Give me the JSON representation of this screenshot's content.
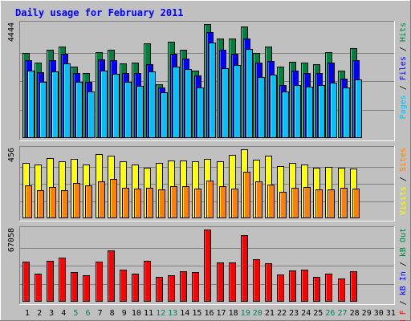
{
  "chart_data": {
    "type": "bar",
    "title": "Daily usage for February 2011",
    "days": [
      "1",
      "2",
      "3",
      "4",
      "5",
      "6",
      "7",
      "8",
      "9",
      "10",
      "11",
      "12",
      "13",
      "14",
      "15",
      "16",
      "17",
      "18",
      "19",
      "20",
      "21",
      "22",
      "23",
      "24",
      "25",
      "26",
      "27",
      "28",
      "29",
      "30",
      "31"
    ],
    "weekend_days": [
      "5",
      "6",
      "12",
      "13",
      "19",
      "20",
      "26",
      "27"
    ],
    "panels": [
      {
        "id": "hits",
        "ymax_label": "4444",
        "ymax": 4444,
        "legend": [
          {
            "text": "Pages",
            "color": "#00C0FF"
          },
          {
            "text": " / ",
            "color": "#000000"
          },
          {
            "text": "Files",
            "color": "#0000FF"
          },
          {
            "text": " / ",
            "color": "#000000"
          },
          {
            "text": "Hits",
            "color": "#008040"
          }
        ],
        "series": [
          {
            "name": "Hits",
            "color": "#008040",
            "values": [
              3330,
              2950,
              3440,
              3580,
              2770,
              2530,
              3340,
              3430,
              2920,
              2930,
              3690,
              2090,
              3740,
              3440,
              2630,
              4440,
              3870,
              3870,
              4360,
              3330,
              3560,
              2800,
              2960,
              2950,
              2880,
              3340,
              2620,
              3510,
              0,
              0,
              0
            ]
          },
          {
            "name": "Files",
            "color": "#0000FF",
            "values": [
              3040,
              2580,
              3030,
              3300,
              2520,
              2190,
              3060,
              3040,
              2530,
              2530,
              2880,
              1970,
              3290,
              3110,
              2430,
              4120,
              3430,
              3280,
              3880,
              2950,
              3000,
              2060,
              2640,
              2520,
              2520,
              2950,
              2330,
              3030,
              0,
              0,
              0
            ]
          },
          {
            "name": "Pages",
            "color": "#00C0FF",
            "values": [
              2640,
              2190,
              2610,
              2900,
              2180,
              1830,
              2640,
              2500,
              2190,
              2030,
              2600,
              1790,
              2790,
              2690,
              1980,
              3720,
              2720,
              2860,
              3470,
              2370,
              2460,
              1830,
              2050,
              2000,
              2050,
              2150,
              1980,
              2280,
              0,
              0,
              0
            ]
          }
        ]
      },
      {
        "id": "visits",
        "ymax_label": "456",
        "ymax": 456,
        "legend": [
          {
            "text": "Visits",
            "color": "#FFFF00"
          },
          {
            "text": " / ",
            "color": "#000000"
          },
          {
            "text": "Sites",
            "color": "#FF8000"
          }
        ],
        "series": [
          {
            "name": "Visits",
            "color": "#FFFF00",
            "values": [
              364,
              356,
              397,
              376,
              392,
              356,
              426,
              412,
              374,
              356,
              335,
              364,
              382,
              384,
              379,
              392,
              379,
              417,
              456,
              385,
              412,
              344,
              364,
              356,
              334,
              340,
              334,
              327,
              0,
              0,
              0
            ]
          },
          {
            "name": "Sites",
            "color": "#FF8000",
            "values": [
              215,
              188,
              208,
              188,
              235,
              217,
              242,
              262,
              203,
              195,
              200,
              192,
              210,
              210,
              197,
              250,
              210,
              195,
              305,
              246,
              225,
              176,
              200,
              208,
              192,
              190,
              200,
              195,
              0,
              0,
              0
            ]
          }
        ]
      },
      {
        "id": "kbytes",
        "ymax_label": "67058",
        "ymax": 67058,
        "legend": [
          {
            "text": "kB F",
            "color": "#FF0000"
          },
          {
            "text": " / ",
            "color": "#000000"
          },
          {
            "text": "kB In",
            "color": "#0000FF"
          },
          {
            "text": " / ",
            "color": "#000000"
          },
          {
            "text": "kB Out",
            "color": "#008040"
          }
        ],
        "series": [
          {
            "name": "kB F",
            "color": "#FF0000",
            "values": [
              37400,
              26400,
              38300,
              41000,
              27300,
              24300,
              37400,
              47400,
              30100,
              26400,
              38300,
              22800,
              24600,
              28300,
              27300,
              67058,
              36500,
              36500,
              61600,
              39200,
              35500,
              25500,
              29200,
              30100,
              22800,
              26400,
              21900,
              28300,
              0,
              0,
              0
            ]
          }
        ]
      }
    ]
  }
}
